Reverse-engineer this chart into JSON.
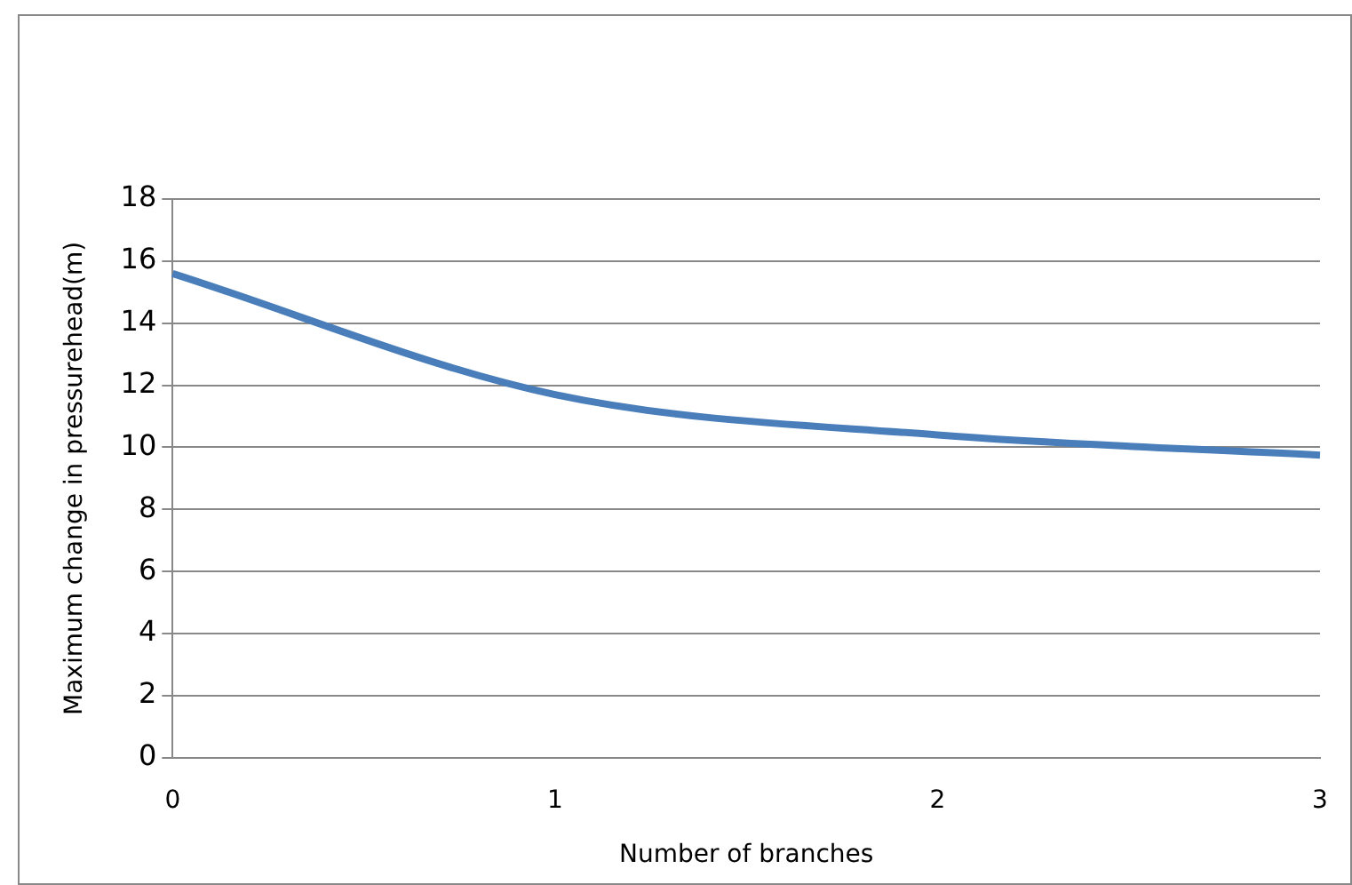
{
  "chart_data": {
    "type": "line",
    "xlabel": "Number of branches",
    "ylabel": "Maximum change in pressurehead(m)",
    "categories": [
      "0",
      "1",
      "2",
      "3"
    ],
    "series": [
      {
        "color": "#4a7ebb",
        "values": [
          15.6,
          11.7,
          10.4,
          9.75
        ]
      }
    ],
    "ylim": [
      0,
      18
    ],
    "yticks": [
      0,
      2,
      4,
      6,
      8,
      10,
      12,
      14,
      16,
      18
    ],
    "grid": "y",
    "legend": false,
    "marker": "none"
  }
}
